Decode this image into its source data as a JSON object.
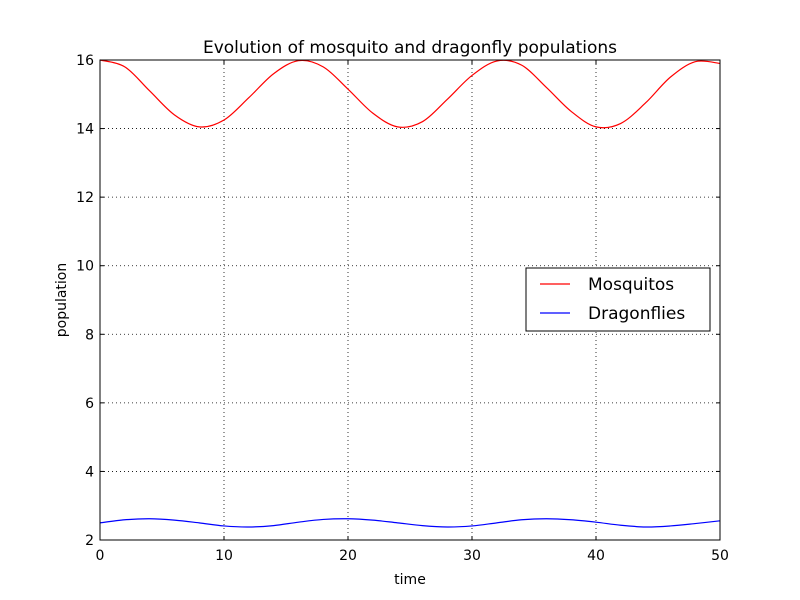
{
  "chart_data": {
    "type": "line",
    "title": "Evolution of mosquito and dragonfly populations",
    "xlabel": "time",
    "ylabel": "population",
    "xlim": [
      0,
      50
    ],
    "ylim": [
      2,
      16
    ],
    "xticks": [
      0,
      10,
      20,
      30,
      40,
      50
    ],
    "yticks": [
      2,
      4,
      6,
      8,
      10,
      12,
      14,
      16
    ],
    "grid": true,
    "legend_position": "center-right",
    "series": [
      {
        "name": "Mosquitos",
        "color": "#ff0000",
        "x": [
          0,
          2,
          4,
          6,
          8,
          10,
          12,
          14,
          16,
          18,
          20,
          22,
          24,
          26,
          28,
          30,
          32,
          34,
          36,
          38,
          40,
          42,
          44,
          46,
          48,
          50
        ],
        "y": [
          16.0,
          15.8,
          15.1,
          14.4,
          14.05,
          14.25,
          14.9,
          15.6,
          15.98,
          15.8,
          15.15,
          14.45,
          14.05,
          14.2,
          14.85,
          15.55,
          15.97,
          15.85,
          15.2,
          14.5,
          14.05,
          14.15,
          14.75,
          15.5,
          15.95,
          15.9
        ]
      },
      {
        "name": "Dragonflies",
        "color": "#0000ff",
        "x": [
          0,
          2,
          4,
          6,
          8,
          10,
          12,
          14,
          16,
          18,
          20,
          22,
          24,
          26,
          28,
          30,
          32,
          34,
          36,
          38,
          40,
          42,
          44,
          46,
          48,
          50
        ],
        "y": [
          2.5,
          2.59,
          2.62,
          2.58,
          2.5,
          2.41,
          2.38,
          2.42,
          2.52,
          2.6,
          2.62,
          2.58,
          2.5,
          2.42,
          2.38,
          2.41,
          2.5,
          2.59,
          2.62,
          2.59,
          2.52,
          2.43,
          2.38,
          2.41,
          2.48,
          2.56
        ]
      }
    ]
  }
}
